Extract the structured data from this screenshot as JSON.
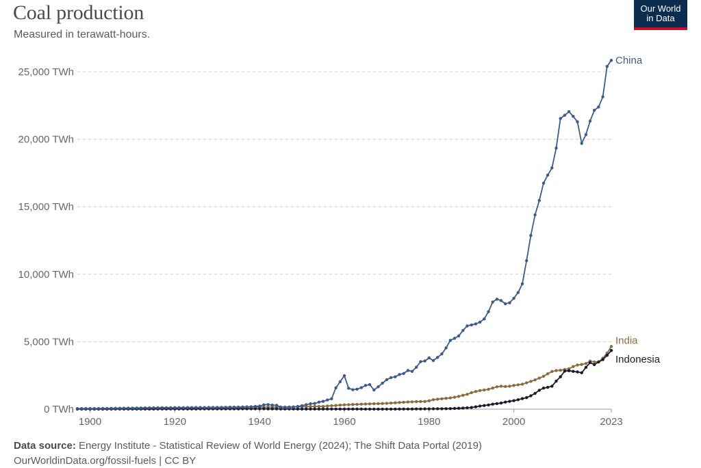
{
  "header": {
    "title": "Coal production",
    "subtitle": "Measured in terawatt-hours.",
    "logo_line1": "Our World",
    "logo_line2": "in Data"
  },
  "footer": {
    "source_label": "Data source:",
    "source_text": "Energy Institute - Statistical Review of World Energy (2024); The Shift Data Portal (2019)",
    "credit": "OurWorldinData.org/fossil-fuels | CC BY"
  },
  "colors": {
    "China": "#3d5a8a",
    "India": "#8b6a3e",
    "Indonesia": "#1a1a2e",
    "grid": "#cccccc",
    "logo_bg": "#0c2d4f",
    "logo_accent": "#c8102e"
  },
  "chart_data": {
    "type": "line",
    "title": "Coal production",
    "subtitle": "Measured in terawatt-hours.",
    "xlim": [
      1897,
      2023
    ],
    "ylim": [
      0,
      25000
    ],
    "x_ticks": [
      1900,
      1920,
      1940,
      1960,
      1980,
      2000,
      2023
    ],
    "y_ticks": [
      {
        "value": 0,
        "label": "0 TWh"
      },
      {
        "value": 5000,
        "label": "5,000 TWh"
      },
      {
        "value": 10000,
        "label": "10,000 TWh"
      },
      {
        "value": 15000,
        "label": "15,000 TWh"
      },
      {
        "value": 20000,
        "label": "20,000 TWh"
      },
      {
        "value": 25000,
        "label": "25,000 TWh"
      }
    ],
    "grid": "horizontal-dashed",
    "legend": "inline-right",
    "series": [
      {
        "name": "China",
        "points": [
          [
            1897,
            40
          ],
          [
            1900,
            45
          ],
          [
            1905,
            60
          ],
          [
            1910,
            80
          ],
          [
            1915,
            100
          ],
          [
            1920,
            110
          ],
          [
            1925,
            120
          ],
          [
            1930,
            130
          ],
          [
            1935,
            150
          ],
          [
            1938,
            180
          ],
          [
            1940,
            230
          ],
          [
            1941,
            320
          ],
          [
            1942,
            340
          ],
          [
            1943,
            300
          ],
          [
            1944,
            290
          ],
          [
            1945,
            150
          ],
          [
            1946,
            140
          ],
          [
            1947,
            130
          ],
          [
            1948,
            160
          ],
          [
            1949,
            200
          ],
          [
            1950,
            260
          ],
          [
            1951,
            330
          ],
          [
            1952,
            400
          ],
          [
            1953,
            420
          ],
          [
            1954,
            520
          ],
          [
            1955,
            580
          ],
          [
            1956,
            680
          ],
          [
            1957,
            770
          ],
          [
            1958,
            1580
          ],
          [
            1959,
            2030
          ],
          [
            1960,
            2480
          ],
          [
            1961,
            1550
          ],
          [
            1962,
            1440
          ],
          [
            1963,
            1480
          ],
          [
            1964,
            1590
          ],
          [
            1965,
            1760
          ],
          [
            1966,
            1820
          ],
          [
            1967,
            1420
          ],
          [
            1968,
            1660
          ],
          [
            1969,
            1930
          ],
          [
            1970,
            2180
          ],
          [
            1971,
            2340
          ],
          [
            1972,
            2400
          ],
          [
            1973,
            2570
          ],
          [
            1974,
            2640
          ],
          [
            1975,
            2870
          ],
          [
            1976,
            2800
          ],
          [
            1977,
            3110
          ],
          [
            1978,
            3520
          ],
          [
            1979,
            3570
          ],
          [
            1980,
            3800
          ],
          [
            1981,
            3600
          ],
          [
            1982,
            3840
          ],
          [
            1983,
            4090
          ],
          [
            1984,
            4540
          ],
          [
            1985,
            5100
          ],
          [
            1986,
            5250
          ],
          [
            1987,
            5430
          ],
          [
            1988,
            5830
          ],
          [
            1989,
            6170
          ],
          [
            1990,
            6240
          ],
          [
            1991,
            6320
          ],
          [
            1992,
            6450
          ],
          [
            1993,
            6690
          ],
          [
            1994,
            7220
          ],
          [
            1995,
            7940
          ],
          [
            1996,
            8150
          ],
          [
            1997,
            8050
          ],
          [
            1998,
            7810
          ],
          [
            1999,
            7880
          ],
          [
            2000,
            8220
          ],
          [
            2001,
            8640
          ],
          [
            2002,
            9290
          ],
          [
            2003,
            11010
          ],
          [
            2004,
            12870
          ],
          [
            2005,
            14400
          ],
          [
            2006,
            15470
          ],
          [
            2007,
            16750
          ],
          [
            2008,
            17350
          ],
          [
            2009,
            17880
          ],
          [
            2010,
            19350
          ],
          [
            2011,
            21540
          ],
          [
            2012,
            21780
          ],
          [
            2013,
            22050
          ],
          [
            2014,
            21700
          ],
          [
            2015,
            21300
          ],
          [
            2016,
            19700
          ],
          [
            2017,
            20350
          ],
          [
            2018,
            21350
          ],
          [
            2019,
            22150
          ],
          [
            2020,
            22400
          ],
          [
            2021,
            23150
          ],
          [
            2022,
            25400
          ],
          [
            2023,
            25850
          ]
        ]
      },
      {
        "name": "India",
        "points": [
          [
            1897,
            20
          ],
          [
            1900,
            30
          ],
          [
            1905,
            40
          ],
          [
            1910,
            60
          ],
          [
            1915,
            80
          ],
          [
            1920,
            100
          ],
          [
            1925,
            100
          ],
          [
            1930,
            110
          ],
          [
            1935,
            110
          ],
          [
            1940,
            150
          ],
          [
            1945,
            150
          ],
          [
            1950,
            180
          ],
          [
            1955,
            210
          ],
          [
            1960,
            320
          ],
          [
            1965,
            380
          ],
          [
            1970,
            430
          ],
          [
            1975,
            530
          ],
          [
            1978,
            570
          ],
          [
            1979,
            570
          ],
          [
            1980,
            620
          ],
          [
            1981,
            700
          ],
          [
            1982,
            740
          ],
          [
            1983,
            770
          ],
          [
            1984,
            800
          ],
          [
            1985,
            830
          ],
          [
            1986,
            880
          ],
          [
            1987,
            950
          ],
          [
            1988,
            1030
          ],
          [
            1989,
            1100
          ],
          [
            1990,
            1220
          ],
          [
            1991,
            1310
          ],
          [
            1992,
            1380
          ],
          [
            1993,
            1420
          ],
          [
            1994,
            1470
          ],
          [
            1995,
            1560
          ],
          [
            1996,
            1660
          ],
          [
            1997,
            1700
          ],
          [
            1998,
            1680
          ],
          [
            1999,
            1700
          ],
          [
            2000,
            1760
          ],
          [
            2001,
            1800
          ],
          [
            2002,
            1850
          ],
          [
            2003,
            1950
          ],
          [
            2004,
            2060
          ],
          [
            2005,
            2170
          ],
          [
            2006,
            2300
          ],
          [
            2007,
            2440
          ],
          [
            2008,
            2620
          ],
          [
            2009,
            2790
          ],
          [
            2010,
            2860
          ],
          [
            2011,
            2880
          ],
          [
            2012,
            2940
          ],
          [
            2013,
            2990
          ],
          [
            2014,
            3160
          ],
          [
            2015,
            3270
          ],
          [
            2016,
            3310
          ],
          [
            2017,
            3380
          ],
          [
            2018,
            3560
          ],
          [
            2019,
            3500
          ],
          [
            2020,
            3500
          ],
          [
            2021,
            3780
          ],
          [
            2022,
            4150
          ],
          [
            2023,
            4650
          ]
        ]
      },
      {
        "name": "Indonesia",
        "points": [
          [
            1897,
            5
          ],
          [
            1900,
            5
          ],
          [
            1910,
            10
          ],
          [
            1920,
            15
          ],
          [
            1930,
            20
          ],
          [
            1940,
            25
          ],
          [
            1950,
            10
          ],
          [
            1960,
            10
          ],
          [
            1970,
            5
          ],
          [
            1975,
            10
          ],
          [
            1980,
            20
          ],
          [
            1985,
            40
          ],
          [
            1988,
            80
          ],
          [
            1990,
            120
          ],
          [
            1991,
            170
          ],
          [
            1992,
            230
          ],
          [
            1993,
            270
          ],
          [
            1994,
            310
          ],
          [
            1995,
            370
          ],
          [
            1996,
            410
          ],
          [
            1997,
            450
          ],
          [
            1998,
            520
          ],
          [
            1999,
            580
          ],
          [
            2000,
            630
          ],
          [
            2001,
            700
          ],
          [
            2002,
            780
          ],
          [
            2003,
            850
          ],
          [
            2004,
            990
          ],
          [
            2005,
            1170
          ],
          [
            2006,
            1400
          ],
          [
            2007,
            1560
          ],
          [
            2008,
            1620
          ],
          [
            2009,
            1700
          ],
          [
            2010,
            2080
          ],
          [
            2011,
            2400
          ],
          [
            2012,
            2820
          ],
          [
            2013,
            2850
          ],
          [
            2014,
            2800
          ],
          [
            2015,
            2760
          ],
          [
            2016,
            2700
          ],
          [
            2017,
            3100
          ],
          [
            2018,
            3450
          ],
          [
            2019,
            3300
          ],
          [
            2020,
            3500
          ],
          [
            2021,
            3670
          ],
          [
            2022,
            3990
          ],
          [
            2023,
            4350
          ]
        ]
      }
    ]
  }
}
